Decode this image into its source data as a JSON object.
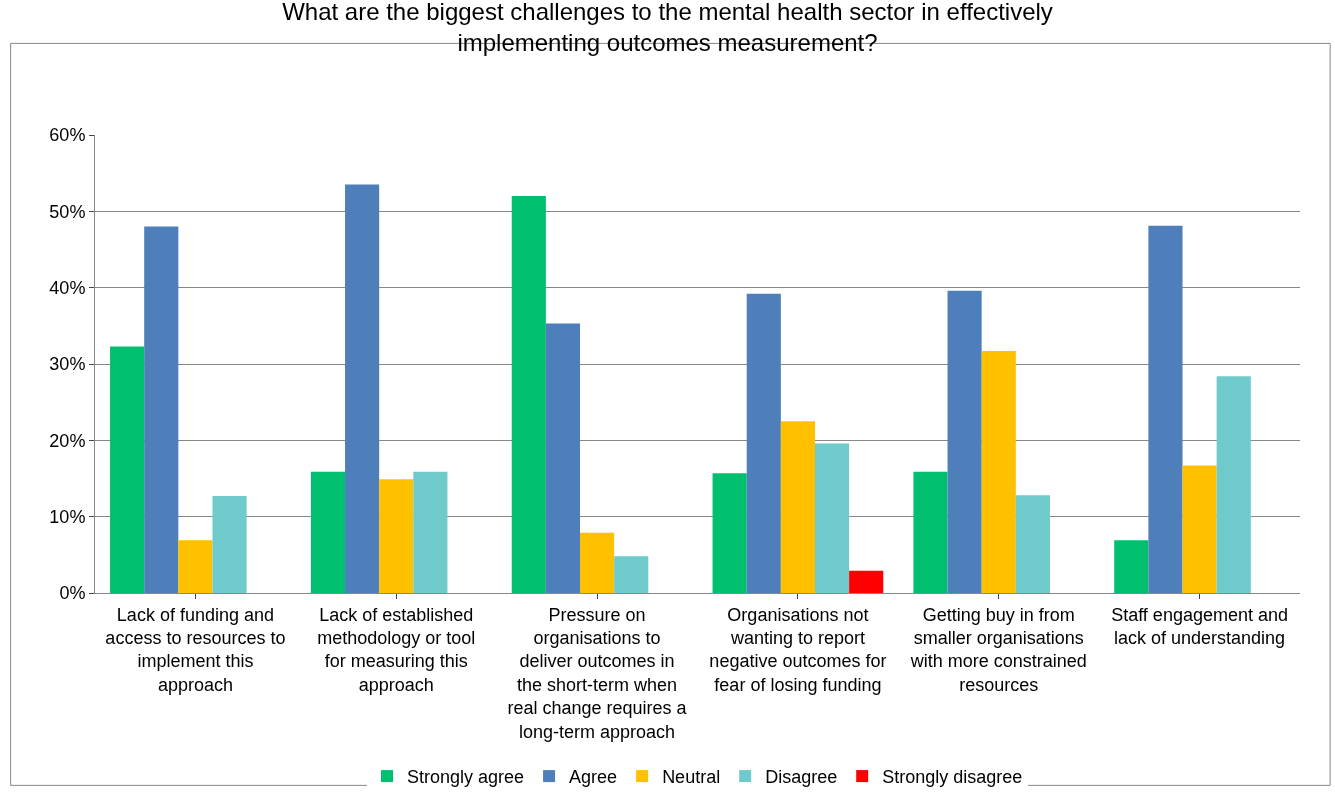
{
  "chart_data": {
    "type": "bar",
    "title": "What are the biggest challenges to the mental health sector in effectively implementing outcomes measurement?",
    "categories": [
      "Lack of funding and access to resources to implement this approach",
      "Lack of established methodology or tool for measuring this approach",
      "Pressure on organisations to deliver outcomes in the short-term when real change requires a long-term approach",
      "Organisations not wanting to report negative outcomes for fear of losing funding",
      "Getting buy in from smaller organisations with more constrained resources",
      "Staff engagement and lack of understanding"
    ],
    "series": [
      {
        "name": "Strongly agree",
        "color": "#00c06f",
        "values": [
          32.3,
          15.9,
          52.0,
          15.7,
          15.9,
          6.9
        ]
      },
      {
        "name": "Agree",
        "color": "#4f7fbb",
        "values": [
          48.0,
          53.5,
          35.3,
          39.2,
          39.6,
          48.1
        ]
      },
      {
        "name": "Neutral",
        "color": "#ffc000",
        "values": [
          6.9,
          14.9,
          7.9,
          22.5,
          31.7,
          16.7
        ]
      },
      {
        "name": "Disagree",
        "color": "#6fcacc",
        "values": [
          12.7,
          15.9,
          4.8,
          19.6,
          12.8,
          28.4
        ]
      },
      {
        "name": "Strongly disagree",
        "color": "#ff0000",
        "values": [
          null,
          null,
          null,
          2.9,
          null,
          null
        ]
      }
    ],
    "ylim": [
      0,
      60
    ],
    "yticks": [
      {
        "value": 0,
        "label": "0%"
      },
      {
        "value": 10,
        "label": "10%"
      },
      {
        "value": 20,
        "label": "20%"
      },
      {
        "value": 30,
        "label": "30%"
      },
      {
        "value": 40,
        "label": "40%"
      },
      {
        "value": 50,
        "label": "50%"
      },
      {
        "value": 60,
        "label": "60%"
      }
    ],
    "grid": "y",
    "legend": "bottom"
  }
}
